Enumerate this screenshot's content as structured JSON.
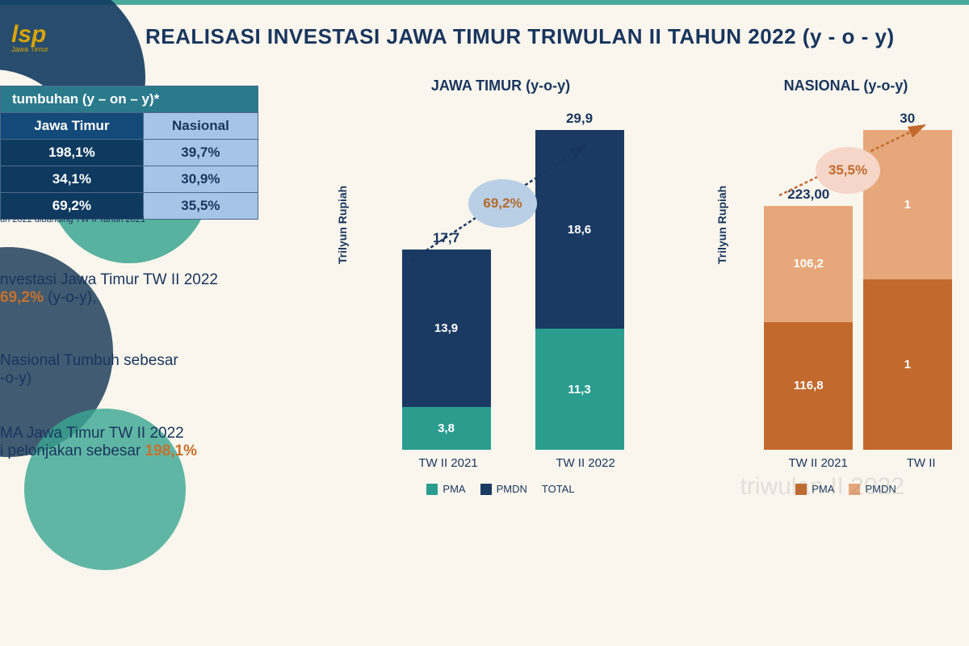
{
  "logo_text": "lsp",
  "logo_sub": "Jawa Timur",
  "main_title": "REALISASI INVESTASI JAWA TIMUR  TRIWULAN II TAHUN 2022  (y - o - y)",
  "table": {
    "header": "tumbuhan (y – on – y)*",
    "col1": "Jawa Timur",
    "col2": "Nasional",
    "rows": [
      {
        "jt": "198,1%",
        "nas": "39,7%"
      },
      {
        "jt": "34,1%",
        "nas": "30,9%"
      },
      {
        "jt": "69,2%",
        "nas": "35,5%"
      }
    ],
    "note": "un 2022 dibanding TW II Tahun 2021"
  },
  "text1_a": "nvestasi Jawa Timur TW II 2022",
  "text1_b": "69,2%",
  "text1_c": " (y-o-y),",
  "text2_a": " Nasional Tumbuh sebesar",
  "text2_b": "-o-y)",
  "text3_a": "MA Jawa Timur TW II 2022",
  "text3_b": "i pelonjakan sebesar ",
  "text3_c": "198,1%",
  "chart_jt": {
    "title": "JAWA TIMUR (y-o-y)",
    "ylabel": "Trilyun Rupiah",
    "ymax": 30,
    "colors": {
      "pma": "#2a9d8f",
      "pmdn": "#1a3a63"
    },
    "legend": {
      "pma": "PMA",
      "pmdn": "PMDN",
      "total": "TOTAL"
    },
    "bars": [
      {
        "xlabel": "TW II 2021",
        "total": "17,7",
        "pma": 3.8,
        "pma_lbl": "3,8",
        "pmdn": 13.9,
        "pmdn_lbl": "13,9"
      },
      {
        "xlabel": "TW II 2022",
        "total": "29,9",
        "pma": 11.3,
        "pma_lbl": "11,3",
        "pmdn": 18.6,
        "pmdn_lbl": "18,6"
      }
    ],
    "growth_label": "69,2%",
    "badge_bg": "#b8cfe6",
    "badge_text_color": "#b56a2a",
    "arrow_color": "#18355e"
  },
  "chart_nas": {
    "title": "NASIONAL (y-o-y)",
    "ylabel": "Trilyun Rupiah",
    "ymax": 310,
    "colors": {
      "pma": "#c26a2e",
      "pmdn": "#e6a77a"
    },
    "legend": {
      "pma": "PMA",
      "pmdn": "PMDN"
    },
    "bars": [
      {
        "xlabel": "TW II 2021",
        "total": "223,00",
        "pma": 116.8,
        "pma_lbl": "116,8",
        "pmdn": 106.2,
        "pmdn_lbl": "106,2"
      },
      {
        "xlabel": "TW II",
        "total": "30",
        "pma": 160,
        "pma_lbl": "1",
        "pmdn": 140,
        "pmdn_lbl": "1"
      }
    ],
    "growth_label": "35,5%",
    "badge_bg": "#f5d6c8",
    "badge_text_color": "#c26a2e",
    "arrow_color": "#c26a2e"
  },
  "watermark": "triwulan II 2022"
}
